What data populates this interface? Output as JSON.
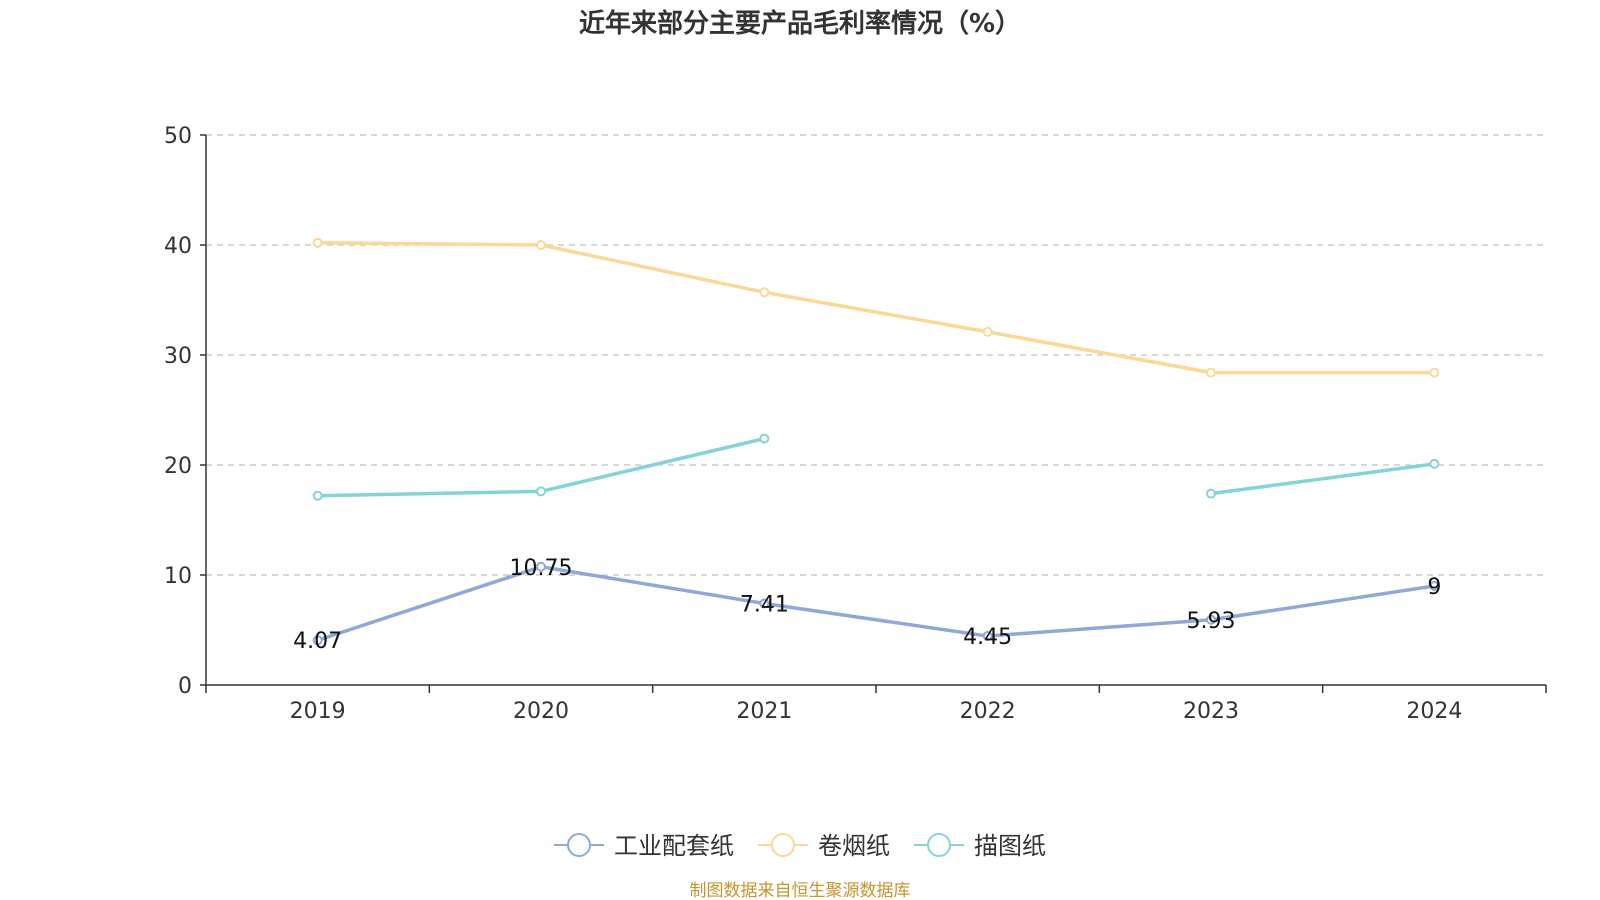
{
  "chart_data": {
    "type": "line",
    "title": "近年来部分主要产品毛利率情况（%）",
    "source": "制图数据来自恒生聚源数据库",
    "categories": [
      "2019",
      "2020",
      "2021",
      "2022",
      "2023",
      "2024"
    ],
    "ylim": [
      0,
      50
    ],
    "yticks": [
      0,
      10,
      20,
      30,
      40,
      50
    ],
    "grid": true,
    "legend_position": "bottom-center",
    "series": [
      {
        "name": "工业配套纸",
        "color": "#8fa9d6",
        "values": [
          4.07,
          10.75,
          7.41,
          4.45,
          5.93,
          9
        ],
        "labels": [
          "4.07",
          "10.75",
          "7.41",
          "4.45",
          "5.93",
          "9"
        ]
      },
      {
        "name": "卷烟纸",
        "color": "#fad897",
        "values": [
          40.2,
          40.0,
          35.7,
          32.1,
          28.4,
          28.4
        ]
      },
      {
        "name": "描图纸",
        "color": "#84d3d6",
        "values": [
          17.2,
          17.6,
          22.4,
          null,
          17.4,
          20.1
        ]
      }
    ]
  }
}
